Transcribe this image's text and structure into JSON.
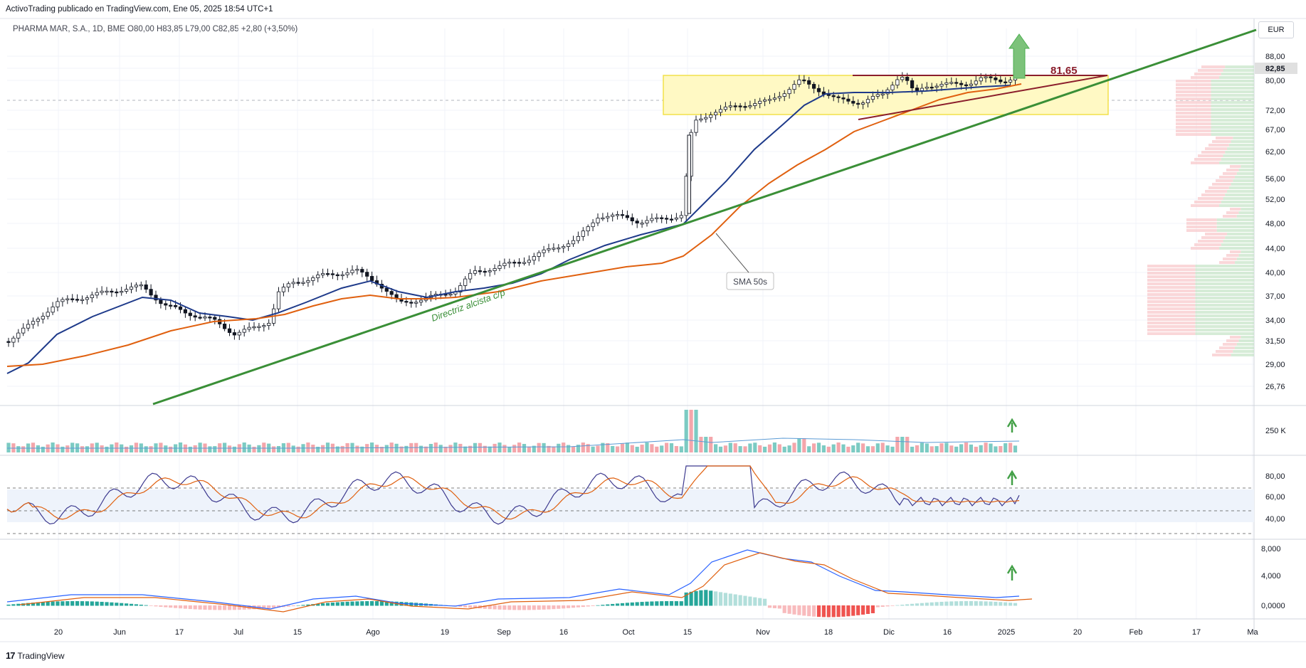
{
  "header": {
    "publish_line": "ActivoTrading publicado en TradingView.com, Ene 05, 2025 18:54 UTC+1",
    "symbol_line": "PHARMA MAR, S.A., 1D, BME  O80,00  H83,85  L79,00  C82,85  +2,80 (+3,50%)",
    "currency": "EUR"
  },
  "footer": {
    "brand": "TradingView",
    "logo_glyph": "17"
  },
  "annotations": {
    "trend_label": "Directriz alcista c/p",
    "sma_label": "SMA 50s",
    "resistance_value": "81,65"
  },
  "colors": {
    "bull_candle": "#ffffff",
    "bear_candle": "#131722",
    "sma_fast": "#1e3a8a",
    "sma_slow": "#e0600f",
    "trendline": "#3a8f37",
    "resistance": "#8b1e2b",
    "zone_fill": "#fff9c4",
    "zone_border": "#f2e14a",
    "volume_up": "#7ccbc3",
    "volume_down": "#f4a6ab",
    "rsi_line": "#3d3a8f",
    "macd_hist_up": "#26a69a",
    "macd_hist_down": "#ef5350",
    "arrow": "#43a047"
  },
  "chart_data": {
    "type": "candlestick",
    "symbol": "PHARMA MAR, S.A.",
    "interval": "1D",
    "exchange": "BME",
    "last": {
      "open": 80.0,
      "high": 83.85,
      "low": 79.0,
      "close": 82.85,
      "change": 2.8,
      "change_pct": 3.5
    },
    "price_axis_ticks": [
      "88,00",
      "82,85",
      "80,00",
      "72,00",
      "67,00",
      "62,00",
      "56,00",
      "52,00",
      "48,00",
      "44,00",
      "40,00",
      "37,00",
      "34,00",
      "31,50",
      "29,00",
      "26,76"
    ],
    "time_axis_ticks": [
      "20",
      "Jun",
      "17",
      "Jul",
      "15",
      "Ago",
      "19",
      "Sep",
      "16",
      "Oct",
      "15",
      "Nov",
      "18",
      "Dic",
      "16",
      "2025",
      "20",
      "Feb",
      "17",
      "Ma"
    ],
    "ohlc_key_closes": [
      {
        "x": "May 20",
        "close": 31.5
      },
      {
        "x": "Jun",
        "close": 37.0
      },
      {
        "x": "Jul",
        "close": 31.7
      },
      {
        "x": "Jul 15",
        "close": 38.5
      },
      {
        "x": "Ago",
        "close": 39.0
      },
      {
        "x": "Ago 19",
        "close": 35.8
      },
      {
        "x": "Sep",
        "close": 38.5
      },
      {
        "x": "Sep 16",
        "close": 40.5
      },
      {
        "x": "Oct",
        "close": 47.5
      },
      {
        "x": "Oct 15",
        "close": 62.0
      },
      {
        "x": "Nov",
        "close": 74.0
      },
      {
        "x": "Nov 18",
        "close": 72.5
      },
      {
        "x": "Dic",
        "close": 76.0
      },
      {
        "x": "Dic 16",
        "close": 77.0
      },
      {
        "x": "2025",
        "close": 82.85
      }
    ],
    "resistance_level": 81.65,
    "volume_axis_label": "250 K",
    "rsi_axis_ticks": [
      "80,00",
      "60,00",
      "40,00"
    ],
    "macd_axis_ticks": [
      "8,000",
      "4,000",
      "0,0000"
    ]
  }
}
